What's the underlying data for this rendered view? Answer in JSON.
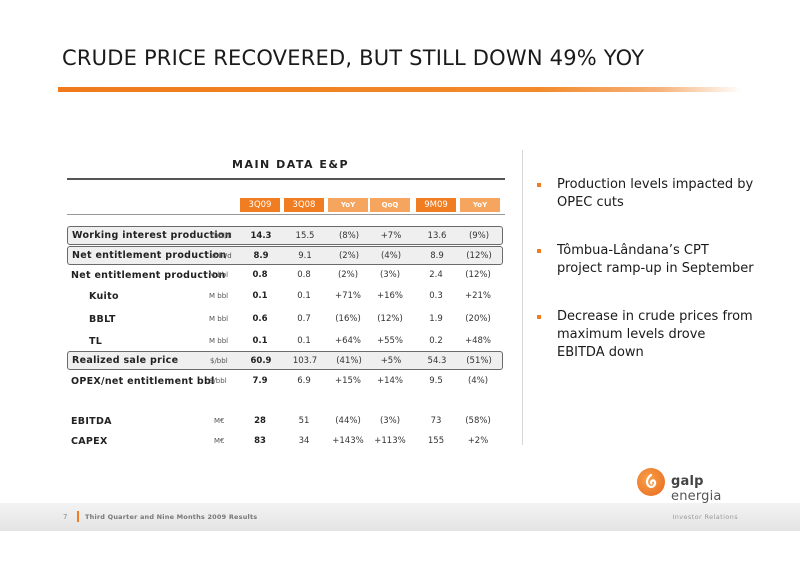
{
  "title": "CRUDE PRICE RECOVERED, BUT STILL DOWN 49% YOY",
  "section_title": "MAIN DATA E&P",
  "columns": [
    "3Q09",
    "3Q08",
    "YoY",
    "QoQ",
    "9M09",
    "YoY"
  ],
  "rows": [
    {
      "label": "Working interest production",
      "unit": "kbbl/d",
      "values": [
        "14.3",
        "15.5",
        "(8%)",
        "+7%",
        "13.6",
        "(9%)"
      ]
    },
    {
      "label": "Net entitlement production",
      "unit": "kbbl/d",
      "values": [
        "8.9",
        "9.1",
        "(2%)",
        "(4%)",
        "8.9",
        "(12%)"
      ]
    },
    {
      "label": "Net entitlement production",
      "unit": "M bbl",
      "values": [
        "0.8",
        "0.8",
        "(2%)",
        "(3%)",
        "2.4",
        "(12%)"
      ]
    },
    {
      "label": "Kuito",
      "unit": "M bbl",
      "values": [
        "0.1",
        "0.1",
        "+71%",
        "+16%",
        "0.3",
        "+21%"
      ]
    },
    {
      "label": "BBLT",
      "unit": "M bbl",
      "values": [
        "0.6",
        "0.7",
        "(16%)",
        "(12%)",
        "1.9",
        "(20%)"
      ]
    },
    {
      "label": "TL",
      "unit": "M bbl",
      "values": [
        "0.1",
        "0.1",
        "+64%",
        "+55%",
        "0.2",
        "+48%"
      ]
    },
    {
      "label": "Realized sale price",
      "unit": "$/bbl",
      "values": [
        "60.9",
        "103.7",
        "(41%)",
        "+5%",
        "54.3",
        "(51%)"
      ]
    },
    {
      "label": "OPEX/net entitlement bbl",
      "unit": "$/bbl",
      "values": [
        "7.9",
        "6.9",
        "+15%",
        "+14%",
        "9.5",
        "(4%)"
      ]
    },
    {
      "label": "EBITDA",
      "unit": "M€",
      "values": [
        "28",
        "51",
        "(44%)",
        "(3%)",
        "73",
        "(58%)"
      ]
    },
    {
      "label": "CAPEX",
      "unit": "M€",
      "values": [
        "83",
        "34",
        "+143%",
        "+113%",
        "155",
        "+2%"
      ]
    }
  ],
  "bullets": [
    "Production levels impacted by OPEC cuts",
    "Tômbua-Lândana’s CPT project ramp-up in September",
    "Decrease in crude prices from maximum levels drove EBITDA down"
  ],
  "logo": {
    "word1": "galp",
    "word2": "energia"
  },
  "footer": {
    "page_number": "7",
    "left": "Third Quarter and Nine Months 2009 Results",
    "right": "Investor Relations"
  },
  "colors": {
    "accent": "#f07d22",
    "accent_light": "#f5a55e"
  }
}
